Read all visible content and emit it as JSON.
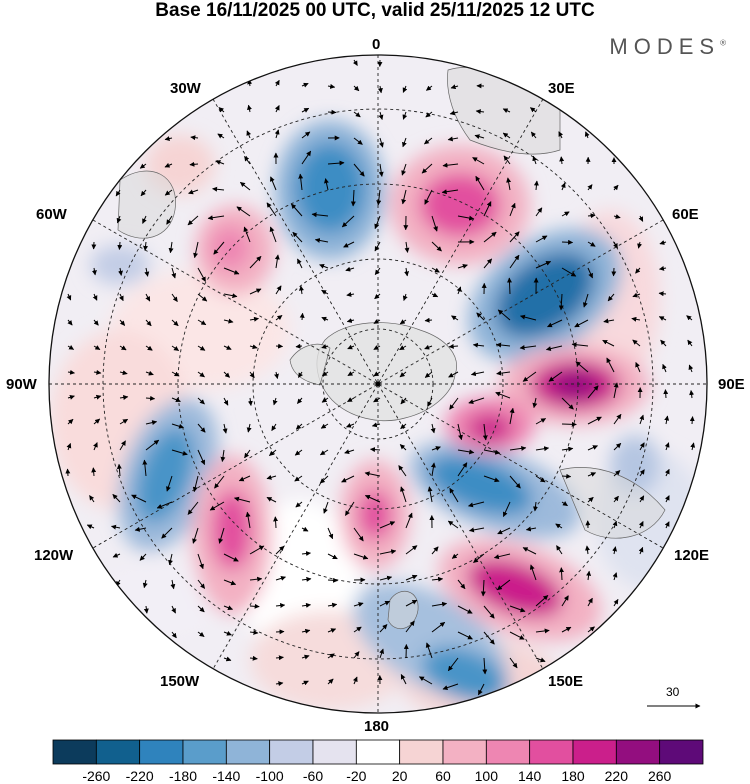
{
  "title": "Base 16/11/2025 00 UTC, valid 25/11/2025 12 UTC",
  "brand": "MODES",
  "brand_mark": "®",
  "longitude_labels": {
    "n0": "0",
    "n30e": "30E",
    "n60e": "60E",
    "n90e": "90E",
    "n120e": "120E",
    "n150e": "150E",
    "n180": "180",
    "n150w": "150W",
    "n120w": "120W",
    "n90w": "90W",
    "n60w": "60W",
    "n30w": "30W"
  },
  "reference_vector": {
    "value": "30"
  },
  "colorbar": {
    "colors": [
      "#0c3b5c",
      "#11608e",
      "#2f83bd",
      "#5a9dcb",
      "#8fb4d8",
      "#c3cde6",
      "#e5e3ef",
      "#ffffff",
      "#f6d4d4",
      "#f3b1c3",
      "#ee86b2",
      "#e24f9f",
      "#cb1f8b",
      "#930e7f",
      "#5e0a78"
    ],
    "labels": [
      "-260",
      "-220",
      "-180",
      "-140",
      "-100",
      "-60",
      "-20",
      "20",
      "60",
      "100",
      "140",
      "180",
      "220",
      "260"
    ]
  }
}
